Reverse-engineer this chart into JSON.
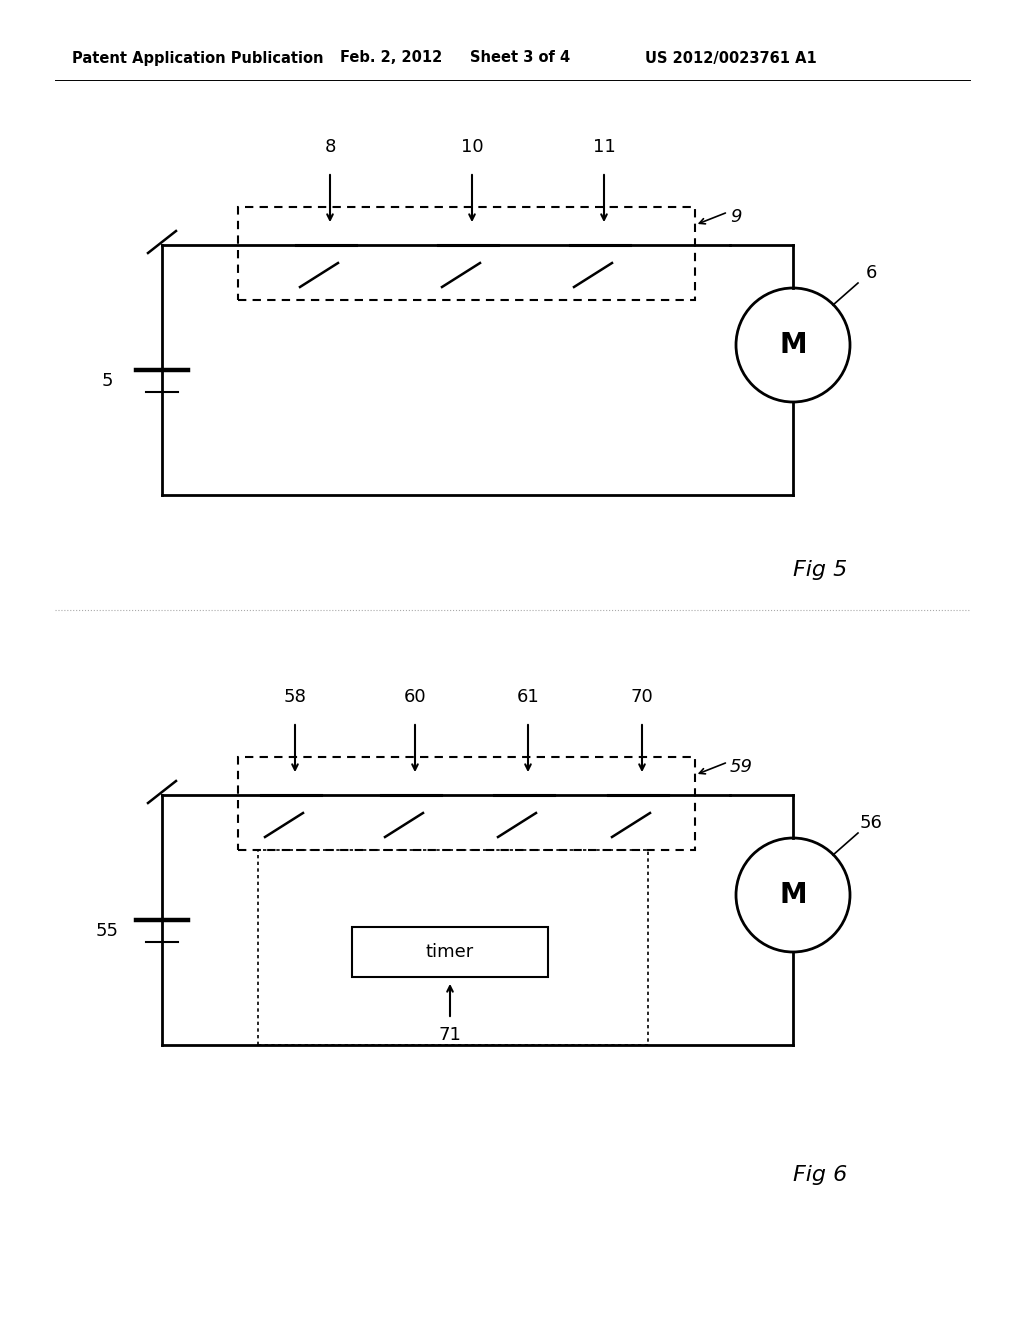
{
  "bg_color": "#ffffff",
  "header_text": "Patent Application Publication",
  "header_date": "Feb. 2, 2012",
  "header_sheet": "Sheet 3 of 4",
  "header_patent": "US 2012/0023761 A1",
  "fig5_label": "Fig 5",
  "fig6_label": "Fig 6",
  "fig5": {
    "switch_labels": [
      "8",
      "10",
      "11"
    ],
    "box_label": "9",
    "battery_label": "5",
    "motor_label": "M",
    "motor_ref_label": "6"
  },
  "fig6": {
    "switch_labels": [
      "58",
      "60",
      "61",
      "70"
    ],
    "box_label": "59",
    "battery_label": "55",
    "motor_label": "M",
    "motor_ref_label": "56",
    "timer_label": "timer",
    "timer_ref_label": "71"
  }
}
